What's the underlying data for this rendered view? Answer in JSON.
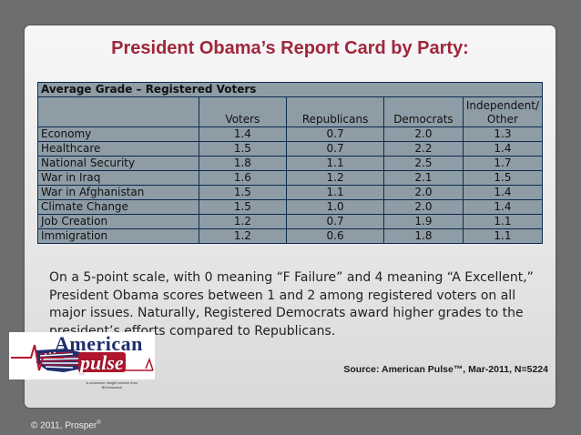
{
  "title": "President Obama’s Report Card by Party:",
  "table": {
    "caption": "Average Grade – Registered Voters",
    "headers": [
      "Voters",
      "Republicans",
      "Democrats",
      "Independent/ Other"
    ],
    "header_independent_line1": "Independent/",
    "header_independent_line2": "Other",
    "rows": [
      {
        "label": "Economy",
        "values": [
          "1.4",
          "0.7",
          "2.0",
          "1.3"
        ]
      },
      {
        "label": "Healthcare",
        "values": [
          "1.5",
          "0.7",
          "2.2",
          "1.4"
        ]
      },
      {
        "label": "National Security",
        "values": [
          "1.8",
          "1.1",
          "2.5",
          "1.7"
        ]
      },
      {
        "label": "War in Iraq",
        "values": [
          "1.6",
          "1.2",
          "2.1",
          "1.5"
        ]
      },
      {
        "label": "War in Afghanistan",
        "values": [
          "1.5",
          "1.1",
          "2.0",
          "1.4"
        ]
      },
      {
        "label": "Climate Change",
        "values": [
          "1.5",
          "1.0",
          "2.0",
          "1.4"
        ]
      },
      {
        "label": "Job Creation",
        "values": [
          "1.2",
          "0.7",
          "1.9",
          "1.1"
        ]
      },
      {
        "label": "Immigration",
        "values": [
          "1.2",
          "0.6",
          "1.8",
          "1.1"
        ]
      }
    ]
  },
  "body_text": "On a 5-point scale, with 0 meaning “F Failure” and 4 meaning “A Excellent,” President Obama scores between 1 and 2 among registered voters on all major issues. Naturally, Registered Democrats award higher grades to the president’s efforts compared to Republicans.",
  "source": "Source: American Pulse™, Mar-2011, N=5224",
  "logo": {
    "word1": "American",
    "word2": "pulse",
    "tagline": "A consumer insight service from BIGresearch",
    "colors": {
      "navy": "#1f2f6e",
      "red": "#b0162e"
    }
  },
  "copyright": "© 2011, Prosper",
  "copyright_mark": "®"
}
